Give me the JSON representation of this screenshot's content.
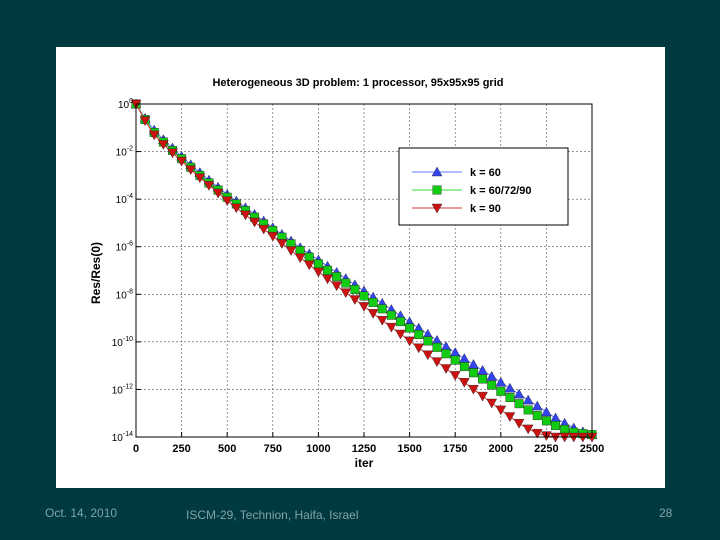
{
  "footer": {
    "date": "Oct. 14, 2010",
    "venue": "ISCM-29, Technion, Haifa, Israel",
    "page": "28"
  },
  "chart_data": {
    "type": "line",
    "title": "Heterogeneous 3D problem:  1 processor,  95x95x95 grid",
    "xlabel": "iter",
    "ylabel": "Res/Res(0)",
    "xlim": [
      0,
      2500
    ],
    "ylim_log10": [
      -14,
      0
    ],
    "x_ticks": [
      0,
      250,
      500,
      750,
      1000,
      1250,
      1500,
      1750,
      2000,
      2250,
      2500
    ],
    "x_tick_labels": [
      "0",
      "250",
      "500",
      "750",
      "1000",
      "1250",
      "1500",
      "1750",
      "2000",
      "2250",
      "2500"
    ],
    "y_tick_exponents": [
      0,
      -2,
      -4,
      -6,
      -8,
      -10,
      -12,
      -14
    ],
    "y_tick_base": "10",
    "grid": true,
    "legend_position": "upper-right",
    "series": [
      {
        "name": "k = 60",
        "marker": "triangle-up",
        "color": "#3344ee",
        "line_color": "#6677ff",
        "x": [
          0,
          50,
          100,
          150,
          200,
          250,
          300,
          350,
          400,
          450,
          500,
          550,
          600,
          650,
          700,
          750,
          800,
          850,
          900,
          950,
          1000,
          1050,
          1100,
          1150,
          1200,
          1250,
          1300,
          1350,
          1400,
          1450,
          1500,
          1550,
          1600,
          1650,
          1700,
          1750,
          1800,
          1850,
          1900,
          1950,
          2000,
          2050,
          2100,
          2150,
          2200,
          2250,
          2300,
          2350,
          2400,
          2450,
          2500
        ],
        "log10_y": [
          0.0,
          -0.6,
          -1.1,
          -1.5,
          -1.85,
          -2.2,
          -2.55,
          -2.88,
          -3.2,
          -3.5,
          -3.8,
          -4.08,
          -4.36,
          -4.64,
          -4.92,
          -5.2,
          -5.48,
          -5.76,
          -6.04,
          -6.3,
          -6.56,
          -6.82,
          -7.08,
          -7.34,
          -7.6,
          -7.86,
          -8.12,
          -8.38,
          -8.64,
          -8.9,
          -9.16,
          -9.42,
          -9.68,
          -9.94,
          -10.2,
          -10.45,
          -10.7,
          -10.95,
          -11.2,
          -11.45,
          -11.7,
          -11.95,
          -12.2,
          -12.45,
          -12.7,
          -12.95,
          -13.2,
          -13.42,
          -13.62,
          -13.78,
          -13.9
        ]
      },
      {
        "name": "k = 60/72/90",
        "marker": "square",
        "color": "#11cc11",
        "line_color": "#33dd33",
        "x": [
          0,
          50,
          100,
          150,
          200,
          250,
          300,
          350,
          400,
          450,
          500,
          550,
          600,
          650,
          700,
          750,
          800,
          850,
          900,
          950,
          1000,
          1050,
          1100,
          1150,
          1200,
          1250,
          1300,
          1350,
          1400,
          1450,
          1500,
          1550,
          1600,
          1650,
          1700,
          1750,
          1800,
          1850,
          1900,
          1950,
          2000,
          2050,
          2100,
          2150,
          2200,
          2250,
          2300,
          2350,
          2400,
          2450,
          2500
        ],
        "log10_y": [
          0.0,
          -0.65,
          -1.2,
          -1.6,
          -1.95,
          -2.3,
          -2.66,
          -3.0,
          -3.32,
          -3.62,
          -3.92,
          -4.2,
          -4.48,
          -4.76,
          -5.04,
          -5.32,
          -5.6,
          -5.88,
          -6.16,
          -6.44,
          -6.72,
          -6.99,
          -7.26,
          -7.53,
          -7.8,
          -8.07,
          -8.34,
          -8.61,
          -8.88,
          -9.15,
          -9.42,
          -9.69,
          -9.96,
          -10.23,
          -10.5,
          -10.77,
          -11.04,
          -11.3,
          -11.56,
          -11.82,
          -12.08,
          -12.34,
          -12.6,
          -12.86,
          -13.1,
          -13.32,
          -13.52,
          -13.68,
          -13.8,
          -13.86,
          -13.9
        ]
      },
      {
        "name": "k = 90",
        "marker": "triangle-down",
        "color": "#cc1111",
        "line_color": "#dd3333",
        "x": [
          0,
          50,
          100,
          150,
          200,
          250,
          300,
          350,
          400,
          450,
          500,
          550,
          600,
          650,
          700,
          750,
          800,
          850,
          900,
          950,
          1000,
          1050,
          1100,
          1150,
          1200,
          1250,
          1300,
          1350,
          1400,
          1450,
          1500,
          1550,
          1600,
          1650,
          1700,
          1750,
          1800,
          1850,
          1900,
          1950,
          2000,
          2050,
          2100,
          2150,
          2200,
          2250,
          2300,
          2350,
          2400,
          2450,
          2500
        ],
        "log10_y": [
          0.0,
          -0.7,
          -1.3,
          -1.7,
          -2.05,
          -2.4,
          -2.76,
          -3.1,
          -3.42,
          -3.74,
          -4.06,
          -4.36,
          -4.66,
          -4.96,
          -5.26,
          -5.56,
          -5.86,
          -6.16,
          -6.46,
          -6.76,
          -7.06,
          -7.35,
          -7.64,
          -7.93,
          -8.22,
          -8.51,
          -8.8,
          -9.09,
          -9.38,
          -9.67,
          -9.96,
          -10.25,
          -10.54,
          -10.83,
          -11.12,
          -11.41,
          -11.7,
          -11.99,
          -12.28,
          -12.57,
          -12.86,
          -13.14,
          -13.42,
          -13.66,
          -13.84,
          -13.94,
          -14.0,
          -14.0,
          -14.0,
          -14.0,
          -14.0
        ]
      }
    ]
  }
}
